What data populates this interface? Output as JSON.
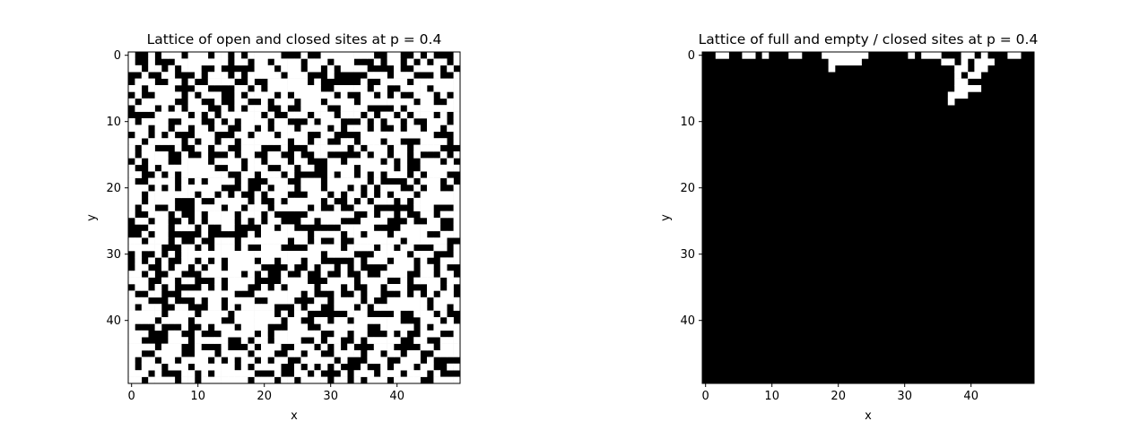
{
  "chart_data": [
    {
      "type": "heatmap",
      "title": "Lattice of open and closed sites at p = 0.4",
      "xlabel": "x",
      "ylabel": "y",
      "grid_size": 50,
      "xlim": [
        -0.5,
        49.5
      ],
      "ylim": [
        49.5,
        -0.5
      ],
      "xticks": [
        0,
        10,
        20,
        30,
        40
      ],
      "yticks": [
        0,
        10,
        20,
        30,
        40
      ],
      "colormap": {
        "1": "#ffffff",
        "0": "#000000"
      },
      "open_probability": 0.4,
      "values_note": "random lattice — cell-by-cell values not legible"
    },
    {
      "type": "heatmap",
      "title": "Lattice of full and empty / closed sites at p = 0.4",
      "xlabel": "x",
      "ylabel": "y",
      "grid_size": 50,
      "xlim": [
        -0.5,
        49.5
      ],
      "ylim": [
        49.5,
        -0.5
      ],
      "xticks": [
        0,
        10,
        20,
        30,
        40
      ],
      "yticks": [
        0,
        10,
        20,
        30,
        40
      ],
      "colormap": {
        "1": "#ffffff",
        "0": "#000000"
      },
      "full_cells": [
        {
          "row": 0,
          "cols": [
            [
              2,
              3
            ],
            [
              6,
              7
            ],
            [
              9,
              9
            ],
            [
              13,
              14
            ],
            [
              18,
              24
            ],
            [
              31,
              31
            ],
            [
              33,
              35
            ],
            [
              39,
              40
            ],
            [
              42,
              42
            ],
            [
              46,
              47
            ]
          ]
        },
        {
          "row": 1,
          "cols": [
            [
              19,
              23
            ],
            [
              36,
              37
            ],
            [
              39,
              39
            ],
            [
              41,
              43
            ]
          ]
        },
        {
          "row": 2,
          "cols": [
            [
              19,
              19
            ],
            [
              38,
              39
            ],
            [
              41,
              42
            ]
          ]
        },
        {
          "row": 3,
          "cols": [
            [
              38,
              38
            ],
            [
              40,
              41
            ]
          ]
        },
        {
          "row": 4,
          "cols": [
            [
              38,
              39
            ]
          ]
        },
        {
          "row": 5,
          "cols": [
            [
              38,
              41
            ]
          ]
        },
        {
          "row": 6,
          "cols": [
            [
              37,
              39
            ]
          ]
        },
        {
          "row": 7,
          "cols": [
            [
              37,
              37
            ]
          ]
        }
      ]
    }
  ]
}
